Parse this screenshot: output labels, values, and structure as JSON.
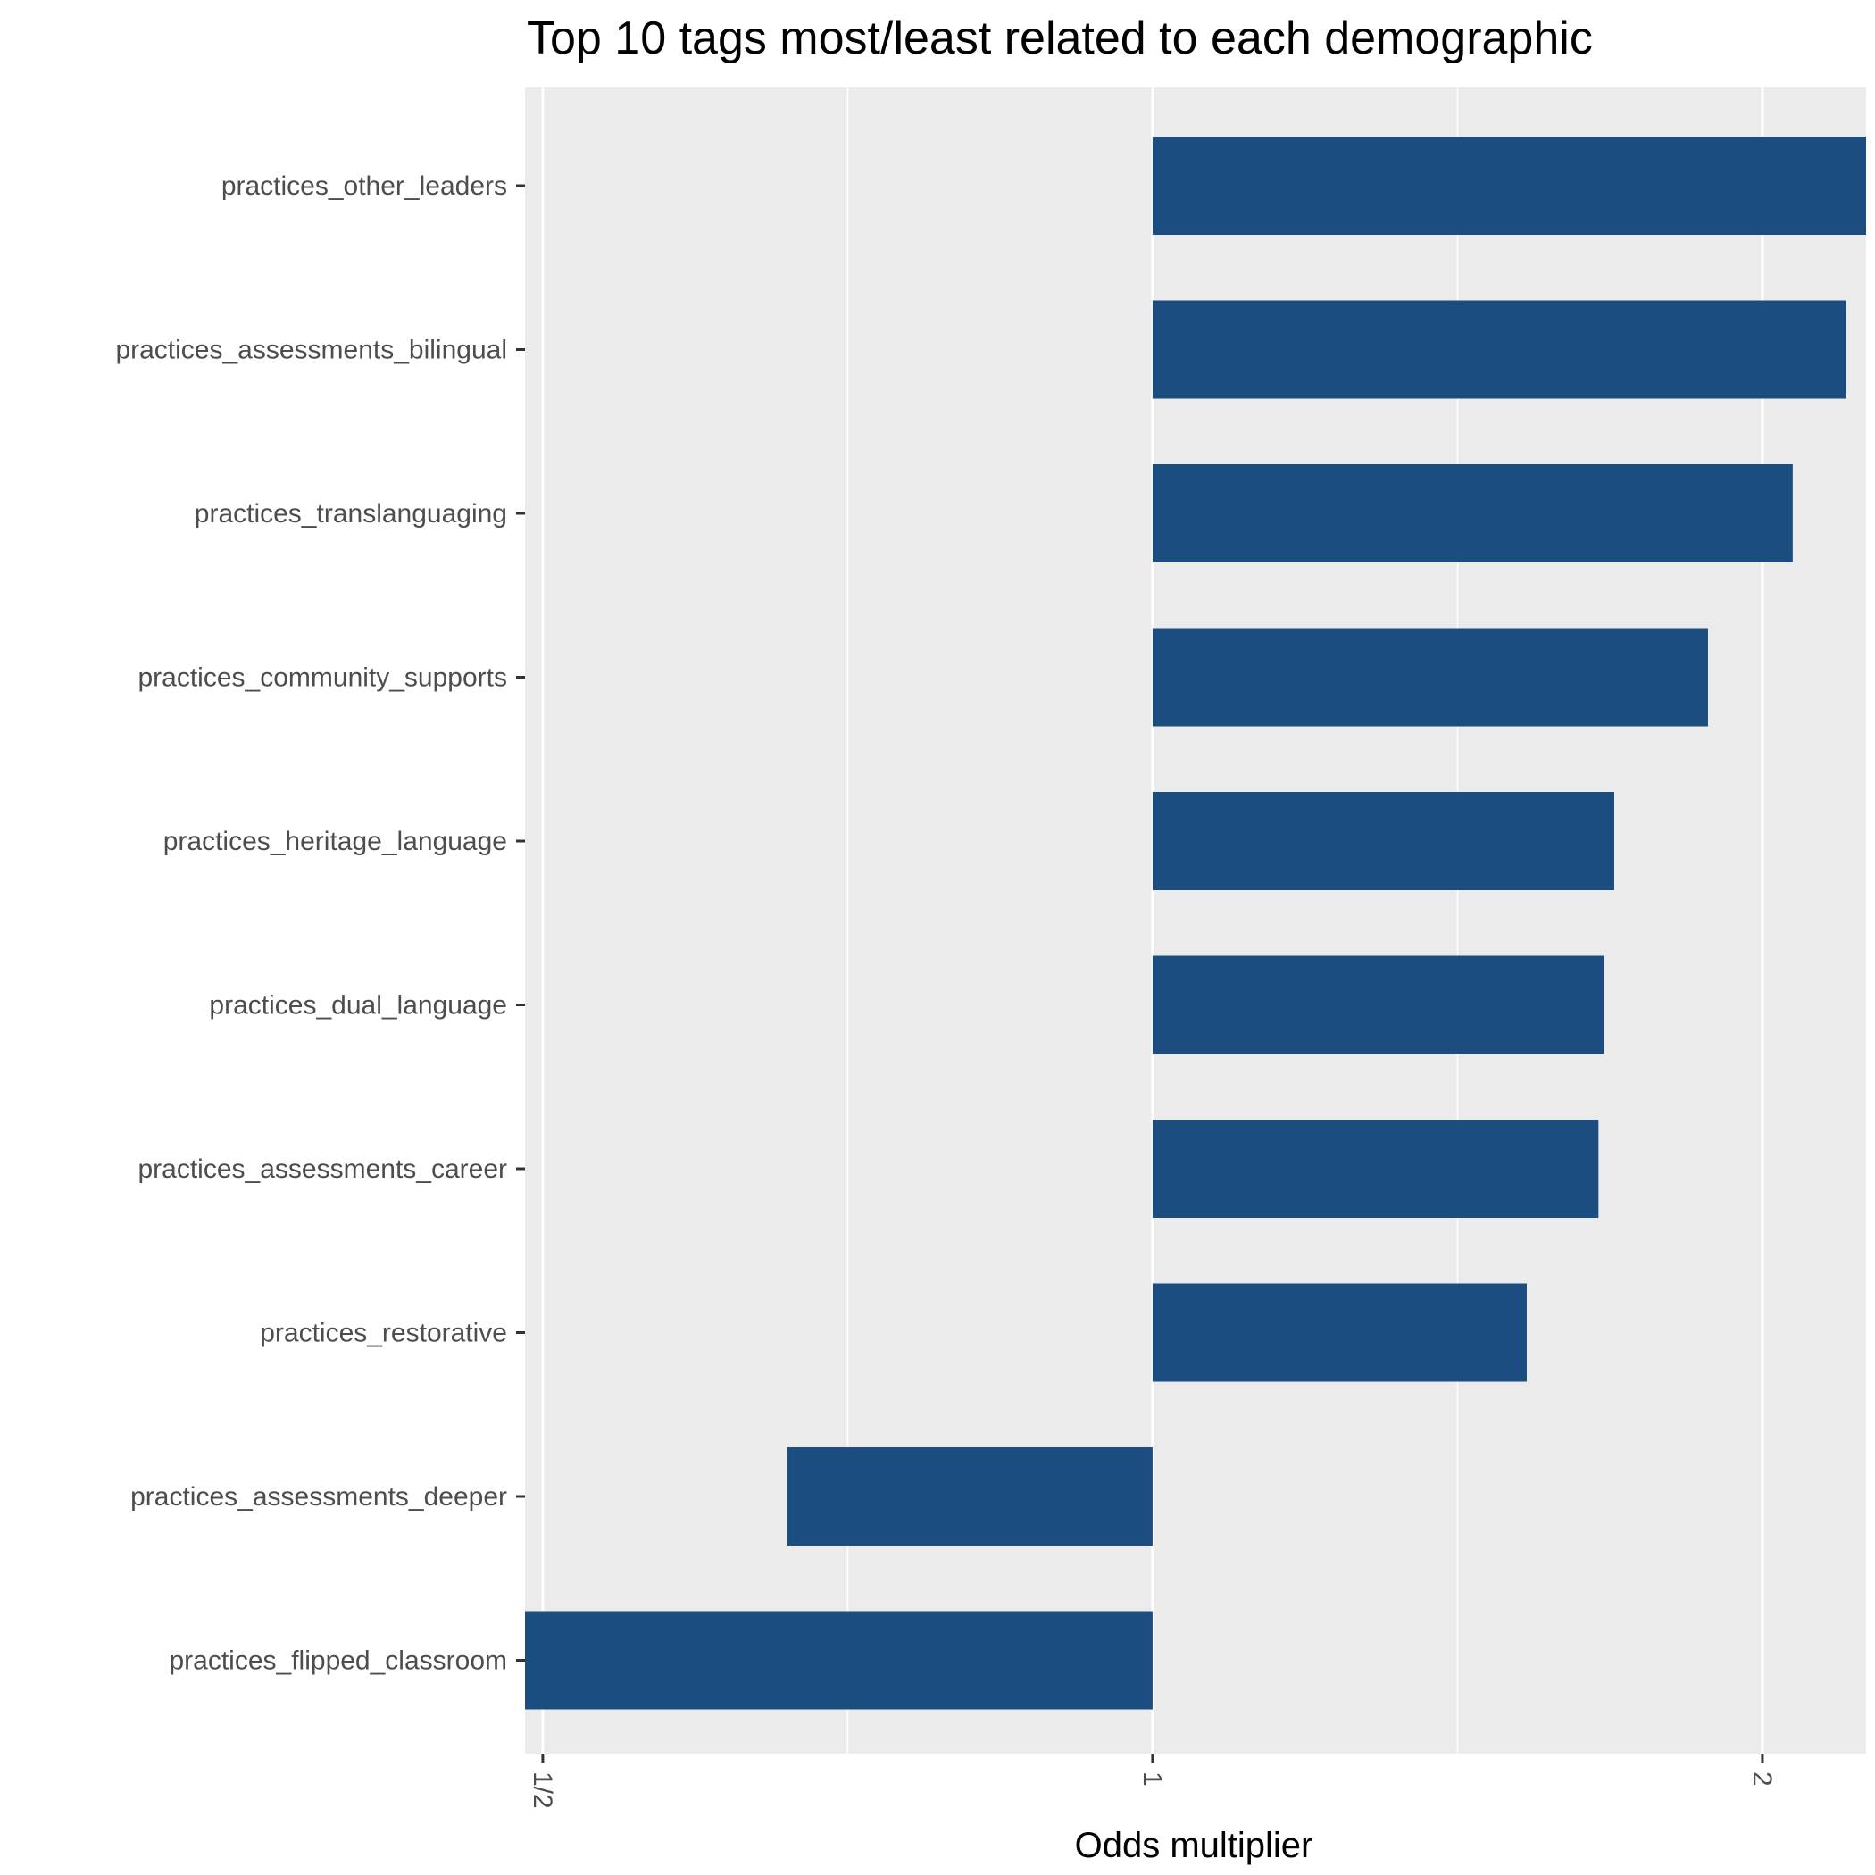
{
  "chart_data": {
    "type": "bar",
    "orientation": "horizontal",
    "title": "Top 10 tags most/least related to each demographic",
    "xlabel": "Odds multiplier",
    "ylabel": "",
    "x_scale": "log2",
    "xlim": [
      0.49,
      2.25
    ],
    "x_ticks": [
      {
        "value": 0.5,
        "label": "1/2"
      },
      {
        "value": 1,
        "label": "1"
      },
      {
        "value": 2,
        "label": "2"
      }
    ],
    "x_minor_grid": [
      0.7071,
      1.4142
    ],
    "baseline": 1,
    "grid": true,
    "bar_color": "#1b4d80",
    "panel_color": "#ebebeb",
    "categories": [
      "practices_other_leaders",
      "practices_assessments_bilingual",
      "practices_translanguaging",
      "practices_community_supports",
      "practices_heritage_language",
      "practices_dual_language",
      "practices_assessments_career",
      "practices_restorative",
      "practices_assessments_deeper",
      "practices_flipped_classroom"
    ],
    "values": [
      2.3,
      2.2,
      2.07,
      1.88,
      1.69,
      1.67,
      1.66,
      1.53,
      0.66,
      0.47
    ]
  }
}
